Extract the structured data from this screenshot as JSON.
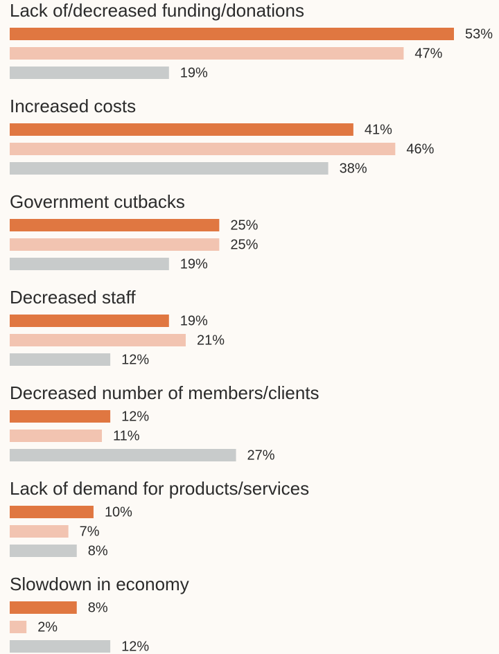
{
  "chart_data": {
    "type": "bar",
    "orientation": "horizontal",
    "categories": [
      "Lack of/decreased funding/donations",
      "Increased costs",
      "Government cutbacks",
      "Decreased staff",
      "Decreased number of members/clients",
      "Lack of demand for products/services",
      "Slowdown in economy"
    ],
    "series": [
      {
        "color": "#e07741",
        "values": [
          53,
          41,
          25,
          19,
          12,
          10,
          8
        ],
        "value_labels": [
          "53%",
          "41%",
          "25%",
          "19%",
          "12%",
          "10%",
          "8%"
        ]
      },
      {
        "color": "#f2c4b1",
        "values": [
          47,
          46,
          25,
          21,
          11,
          7,
          2
        ],
        "value_labels": [
          "47%",
          "46%",
          "25%",
          "21%",
          "11%",
          "7%",
          "2%"
        ]
      },
      {
        "color": "#c8cbcb",
        "values": [
          19,
          38,
          19,
          12,
          27,
          8,
          12
        ],
        "value_labels": [
          "19%",
          "38%",
          "19%",
          "12%",
          "27%",
          "8%",
          "12%"
        ]
      }
    ]
  }
}
